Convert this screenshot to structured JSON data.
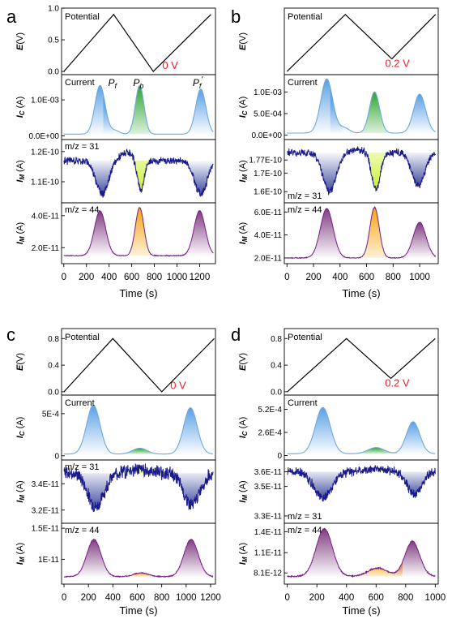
{
  "panels": [
    {
      "id": "a",
      "letter": "a",
      "xlim": [
        -20,
        1340
      ],
      "xticks": [
        0,
        200,
        400,
        600,
        800,
        1000,
        1200
      ],
      "xtick_labels": [
        "0",
        "200",
        "400",
        "600",
        "800",
        "1000",
        "1200"
      ],
      "xtick_labels_overlap": true,
      "xlabel": "Time (s)",
      "potential": {
        "label": "Potential",
        "ylabel": "E(V)",
        "ylim": [
          -0.05,
          1.0
        ],
        "t": [
          0,
          440,
          790,
          1300
        ],
        "E": [
          0.0,
          0.9,
          0.0,
          0.9
        ],
        "yticks": [
          0.0,
          0.5,
          1.0
        ],
        "ytick_labels": [
          "0.0",
          "0.5",
          "1.0"
        ],
        "annotation": "0 V",
        "annotation_t": 870,
        "annotation_E": 0.04
      },
      "current": {
        "label": "Current",
        "ylabel": "I_C (A)",
        "ylim": [
          -0.0001,
          0.0017
        ],
        "yticks": [
          0.0,
          0.001
        ],
        "ytick_labels": [
          "0.0E+00",
          "1.0E-03"
        ],
        "baseline": 5e-05,
        "peaks": [
          {
            "t": 320,
            "amp": 0.00135,
            "sigma": 45,
            "name": "P_f",
            "color": "blue"
          },
          {
            "t": 450,
            "amp": 0.0001,
            "sigma": 40,
            "name": "",
            "color": "blue"
          },
          {
            "t": 670,
            "amp": 0.00135,
            "sigma": 38,
            "name": "P_b",
            "color": "green"
          },
          {
            "t": 1210,
            "amp": 0.00125,
            "sigma": 45,
            "name": "P_f'",
            "color": "blue"
          }
        ]
      },
      "mz31": {
        "label": "m/z = 31",
        "label_pos": "top",
        "ylabel": "I_M (A)",
        "ylim": [
          1.03e-10,
          1.24e-10
        ],
        "yticks": [
          1.1e-10,
          1.2e-10
        ],
        "ytick_labels": [
          "1.1E-10",
          "1.2E-10"
        ],
        "baseline": 1.17e-10,
        "noise": 1e-12,
        "peaks": [
          {
            "t": 340,
            "amp": -1.1e-11,
            "sigma": 55,
            "color": "navy"
          },
          {
            "t": 680,
            "amp": -1e-11,
            "sigma": 30,
            "color": "yellowgreen"
          },
          {
            "t": 1210,
            "amp": -1.1e-11,
            "sigma": 55,
            "color": "navy"
          }
        ],
        "bumps": [
          {
            "t": 550,
            "amp": 2.5e-12,
            "sigma": 60
          }
        ]
      },
      "mz44": {
        "label": "m/z = 44",
        "label_pos": "top",
        "ylabel": "I_M (A)",
        "ylim": [
          1e-11,
          4.8e-11
        ],
        "yticks": [
          2e-11,
          4e-11
        ],
        "ytick_labels": [
          "2.0E-11",
          "4.0E-11"
        ],
        "baseline": 1.5e-11,
        "noise": 2e-13,
        "peaks": [
          {
            "t": 320,
            "amp": 2.8e-11,
            "sigma": 50,
            "color": "purple"
          },
          {
            "t": 670,
            "amp": 3e-11,
            "sigma": 38,
            "color": "orange"
          },
          {
            "t": 1200,
            "amp": 2.8e-11,
            "sigma": 50,
            "color": "purple"
          }
        ]
      }
    },
    {
      "id": "b",
      "letter": "b",
      "xlim": [
        -20,
        1140
      ],
      "xticks": [
        0,
        200,
        400,
        600,
        800,
        1000
      ],
      "xtick_labels": [
        "0",
        "200",
        "400",
        "600",
        "800",
        "1000"
      ],
      "xlabel": "Time (s)",
      "potential": {
        "label": "Potential",
        "ylabel": "E(V)",
        "ylim": [
          -0.05,
          1.0
        ],
        "t": [
          0,
          440,
          790,
          1120
        ],
        "E": [
          0.0,
          0.9,
          0.2,
          0.9
        ],
        "yticks": [],
        "ytick_labels": [],
        "annotation": "0.2 V",
        "annotation_t": 740,
        "annotation_E": 0.07
      },
      "current": {
        "label": "Current",
        "ylabel": "I_C (A)",
        "ylim": [
          -0.0001,
          0.0014
        ],
        "yticks": [
          0.0,
          0.0005,
          0.001
        ],
        "ytick_labels": [
          "0.0E+00",
          "5.0E-04",
          "1.0E-03"
        ],
        "baseline": 5e-05,
        "peaks": [
          {
            "t": 300,
            "amp": 0.00125,
            "sigma": 45,
            "color": "blue"
          },
          {
            "t": 430,
            "amp": 0.00012,
            "sigma": 40,
            "color": "blue"
          },
          {
            "t": 660,
            "amp": 0.00095,
            "sigma": 38,
            "color": "green"
          },
          {
            "t": 1000,
            "amp": 0.0009,
            "sigma": 45,
            "color": "blue"
          }
        ]
      },
      "mz31": {
        "label": "m/z = 31",
        "label_pos": "bottom",
        "ylabel": "I_M (A)",
        "ylim": [
          1.54e-10,
          1.88e-10
        ],
        "yticks": [
          1.6e-10,
          1.7e-10
        ],
        "ytick_labels": [
          "1.6E-10",
          "1.7E-10"
        ],
        "yticks_extra": [
          1.77e-10
        ],
        "ytick_labels_extra": [
          "1.77E-10"
        ],
        "baseline": 1.81e-10,
        "noise": 1.5e-12,
        "peaks": [
          {
            "t": 320,
            "amp": -2.1e-11,
            "sigma": 50,
            "color": "navy"
          },
          {
            "t": 670,
            "amp": -2e-11,
            "sigma": 32,
            "color": "yellowgreen"
          },
          {
            "t": 990,
            "amp": -1.8e-11,
            "sigma": 48,
            "color": "navy"
          }
        ],
        "bumps": [
          {
            "t": 540,
            "amp": 1.5e-12,
            "sigma": 50
          }
        ]
      },
      "mz44": {
        "label": "m/z = 44",
        "label_pos": "top",
        "ylabel": "I_M (A)",
        "ylim": [
          1.5e-11,
          6.8e-11
        ],
        "yticks": [
          2e-11,
          4e-11,
          6e-11
        ],
        "ytick_labels": [
          "2.0E-11",
          "4.0E-11",
          "6.0E-11"
        ],
        "baseline": 2e-11,
        "noise": 2.5e-13,
        "peaks": [
          {
            "t": 300,
            "amp": 4.3e-11,
            "sigma": 48,
            "color": "purple"
          },
          {
            "t": 660,
            "amp": 4.4e-11,
            "sigma": 35,
            "color": "orange"
          },
          {
            "t": 1000,
            "amp": 3.1e-11,
            "sigma": 48,
            "color": "purple"
          }
        ]
      }
    },
    {
      "id": "c",
      "letter": "c",
      "xlim": [
        -20,
        1240
      ],
      "xticks": [
        0,
        200,
        400,
        600,
        800,
        1000,
        1200
      ],
      "xtick_labels": [
        "0",
        "200",
        "400",
        "600",
        "800",
        "1000",
        "1200"
      ],
      "xlabel": "Time (s)",
      "potential": {
        "label": "Potential",
        "ylabel": "E(V)",
        "ylim": [
          -0.05,
          0.95
        ],
        "t": [
          0,
          400,
          800,
          1230
        ],
        "E": [
          0.0,
          0.8,
          0.0,
          0.8
        ],
        "yticks": [
          0.0,
          0.4,
          0.8
        ],
        "ytick_labels": [
          "0.0",
          "0.4",
          "0.8"
        ],
        "annotation": "0 V",
        "annotation_t": 870,
        "annotation_E": 0.04
      },
      "current": {
        "label": "Current",
        "ylabel": "I_C (A)",
        "ylim": [
          -5e-05,
          0.00072
        ],
        "yticks": [
          0.0,
          0.0005
        ],
        "ytick_labels": [
          "0",
          "5E-4"
        ],
        "baseline": 2e-05,
        "peaks": [
          {
            "t": 240,
            "amp": 0.00058,
            "sigma": 55,
            "color": "blue"
          },
          {
            "t": 620,
            "amp": 7e-05,
            "sigma": 60,
            "color": "green"
          },
          {
            "t": 1035,
            "amp": 0.00055,
            "sigma": 55,
            "color": "blue"
          }
        ]
      },
      "mz31": {
        "label": "m/z = 31",
        "label_pos": "top",
        "ylabel": "I_M (A)",
        "ylim": [
          3.1e-11,
          3.58e-11
        ],
        "yticks": [
          3.2e-11,
          3.4e-11
        ],
        "ytick_labels": [
          "3.2E-11",
          "3.4E-11"
        ],
        "baseline": 3.48e-11,
        "noise": 4e-13,
        "peaks": [
          {
            "t": 260,
            "amp": -2.6e-12,
            "sigma": 65,
            "color": "navy"
          },
          {
            "t": 1045,
            "amp": -2.4e-12,
            "sigma": 65,
            "color": "navy"
          }
        ],
        "bumps": [
          {
            "t": 600,
            "amp": 3e-13,
            "sigma": 90,
            "color": "yellowgreen"
          }
        ]
      },
      "mz44": {
        "label": "m/z = 44",
        "label_pos": "top",
        "ylabel": "I_M (A)",
        "ylim": [
          6e-12,
          1.58e-11
        ],
        "yticks": [
          1e-11,
          1.5e-11
        ],
        "ytick_labels": [
          "1E-11",
          "1.5E-11"
        ],
        "baseline": 7.2e-12,
        "noise": 6e-14,
        "peaks": [
          {
            "t": 245,
            "amp": 6e-12,
            "sigma": 58,
            "color": "purple"
          },
          {
            "t": 630,
            "amp": 6e-13,
            "sigma": 60,
            "color": "orange"
          },
          {
            "t": 1040,
            "amp": 6e-12,
            "sigma": 58,
            "color": "purple"
          }
        ]
      }
    },
    {
      "id": "d",
      "letter": "d",
      "xlim": [
        -20,
        1020
      ],
      "xticks": [
        0,
        200,
        400,
        600,
        800,
        1000
      ],
      "xtick_labels": [
        "0",
        "200",
        "400",
        "600",
        "800",
        "1000"
      ],
      "xlabel": "Time (s)",
      "potential": {
        "label": "Potential",
        "ylabel": "E(V)",
        "ylim": [
          -0.05,
          0.95
        ],
        "t": [
          0,
          400,
          700,
          1000
        ],
        "E": [
          0.0,
          0.8,
          0.2,
          0.8
        ],
        "yticks": [
          0.0,
          0.4,
          0.8
        ],
        "ytick_labels": [
          "0.0",
          "0.4",
          "0.8"
        ],
        "annotation": "0.2 V",
        "annotation_t": 660,
        "annotation_E": 0.08
      },
      "current": {
        "label": "Current",
        "ylabel": "I_C (A)",
        "ylim": [
          -5e-05,
          0.00068
        ],
        "yticks": [
          0.0,
          0.00026,
          0.00052
        ],
        "ytick_labels": [
          "0",
          "2.6E-4",
          "5.2E-4"
        ],
        "baseline": 2e-05,
        "peaks": [
          {
            "t": 240,
            "amp": 0.00052,
            "sigma": 50,
            "color": "blue"
          },
          {
            "t": 600,
            "amp": 7e-05,
            "sigma": 55,
            "color": "green"
          },
          {
            "t": 850,
            "amp": 0.00036,
            "sigma": 45,
            "color": "blue"
          }
        ]
      },
      "mz31": {
        "label": "m/z = 31",
        "label_pos": "bottom",
        "ylabel": "I_M (A)",
        "ylim": [
          3.25e-11,
          3.68e-11
        ],
        "yticks": [
          3.3e-11,
          3.5e-11,
          3.6e-11
        ],
        "ytick_labels": [
          "3.3E-11",
          "3.5E-11",
          "3.6E-11"
        ],
        "baseline": 3.6e-11,
        "noise": 2.5e-13,
        "peaks": [
          {
            "t": 240,
            "amp": -1.8e-12,
            "sigma": 60,
            "color": "navy"
          },
          {
            "t": 860,
            "amp": -1.5e-12,
            "sigma": 50,
            "color": "navy"
          }
        ],
        "bumps": [
          {
            "t": 600,
            "amp": 2e-13,
            "sigma": 70,
            "color": "yellowgreen"
          }
        ]
      },
      "mz44": {
        "label": "m/z = 44",
        "label_pos": "top",
        "ylabel": "I_M (A)",
        "ylim": [
          6.5e-12,
          1.52e-11
        ],
        "yticks": [
          8.1e-12,
          1.1e-11,
          1.4e-11
        ],
        "ytick_labels": [
          "8.1E-12",
          "1.1E-11",
          "1.4E-11"
        ],
        "baseline": 7.6e-12,
        "noise": 7e-14,
        "peaks": [
          {
            "t": 250,
            "amp": 6.8e-12,
            "sigma": 55,
            "color": "purple"
          },
          {
            "t": 610,
            "amp": 1.2e-12,
            "sigma": 65,
            "color": "orange"
          },
          {
            "t": 845,
            "amp": 5e-12,
            "sigma": 50,
            "color": "purple"
          }
        ]
      }
    }
  ],
  "colors": {
    "blue_line": "#6fa8e0",
    "blue_fill": "#3d8fe0",
    "green_fill": "#20a020",
    "green_line": "#2a9a2a",
    "navy_line": "#1a1a8c",
    "navy_fill": "#1a2a8c",
    "yellowgreen_fill": "#c8f020",
    "purple_line": "#7a1a8a",
    "purple_fill": "#6a1a6a",
    "orange_fill": "#f5a000",
    "red_text": "#e8202a",
    "axis": "#000000"
  }
}
